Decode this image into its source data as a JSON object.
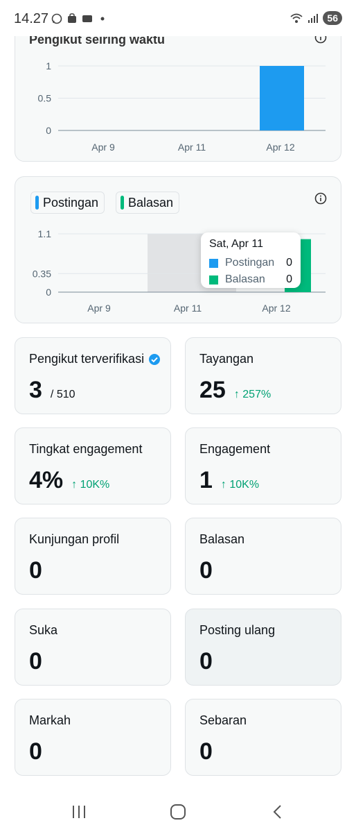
{
  "status_bar": {
    "time": "14.27",
    "battery": "56"
  },
  "followers_chart": {
    "title": "Pengikut seiring waktu",
    "y_ticks": [
      "1",
      "0.5",
      "0"
    ],
    "x_ticks": [
      "Apr 9",
      "Apr 11",
      "Apr 12"
    ]
  },
  "activity_chart": {
    "legend": [
      "Postingan",
      "Balasan"
    ],
    "y_ticks": [
      "1.1",
      "0.35",
      "0"
    ],
    "x_ticks": [
      "Apr 9",
      "Apr 11",
      "Apr 12"
    ],
    "tooltip": {
      "title": "Sat, Apr 11",
      "rows": [
        {
          "label": "Postingan",
          "value": "0"
        },
        {
          "label": "Balasan",
          "value": "0"
        }
      ]
    }
  },
  "chart_data": [
    {
      "type": "bar",
      "title": "Pengikut seiring waktu",
      "categories": [
        "Apr 9",
        "Apr 11",
        "Apr 12"
      ],
      "values": [
        0,
        0,
        1
      ],
      "ylim": [
        0,
        1
      ],
      "color": "#1d9bf0"
    },
    {
      "type": "bar",
      "categories": [
        "Apr 9",
        "Apr 11",
        "Apr 12"
      ],
      "series": [
        {
          "name": "Postingan",
          "values": [
            0,
            0,
            0
          ],
          "color": "#1d9bf0"
        },
        {
          "name": "Balasan",
          "values": [
            0,
            0,
            1
          ],
          "color": "#00ba7c"
        }
      ],
      "ylim": [
        0,
        1.1
      ]
    }
  ],
  "stats": {
    "verified_followers": {
      "label": "Pengikut terverifikasi",
      "value": "3",
      "sub": "/ 510"
    },
    "impressions": {
      "label": "Tayangan",
      "value": "25",
      "delta": "↑ 257%"
    },
    "engagement_rate": {
      "label": "Tingkat engagement",
      "value": "4%",
      "delta": "↑ 10K%"
    },
    "engagements": {
      "label": "Engagement",
      "value": "1",
      "delta": "↑ 10K%"
    },
    "profile_visits": {
      "label": "Kunjungan profil",
      "value": "0"
    },
    "replies": {
      "label": "Balasan",
      "value": "0"
    },
    "likes": {
      "label": "Suka",
      "value": "0"
    },
    "reposts": {
      "label": "Posting ulang",
      "value": "0"
    },
    "bookmarks": {
      "label": "Markah",
      "value": "0"
    },
    "shares": {
      "label": "Sebaran",
      "value": "0"
    }
  },
  "colors": {
    "accent": "#1d9bf0",
    "green": "#00ba7c",
    "delta": "#00a173"
  }
}
